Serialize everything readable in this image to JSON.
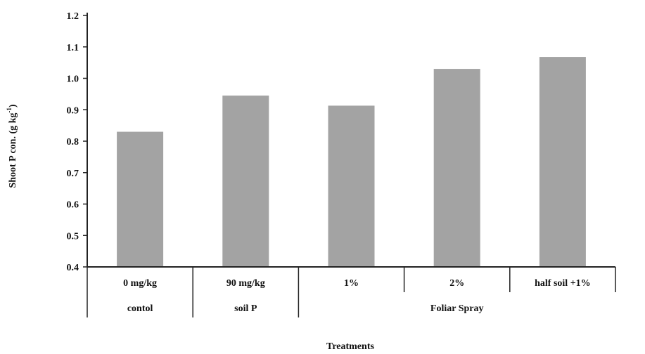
{
  "chart_data": {
    "type": "bar",
    "categories": [
      "0 mg/kg",
      "90 mg/kg",
      "1%",
      "2%",
      "half soil +1%"
    ],
    "groups": [
      {
        "label": "contol",
        "span": [
          0,
          0
        ]
      },
      {
        "label": "soil P",
        "span": [
          1,
          1
        ]
      },
      {
        "label": "Foliar Spray",
        "span": [
          2,
          4
        ]
      }
    ],
    "values": [
      0.83,
      0.945,
      0.913,
      1.03,
      1.068
    ],
    "xlabel": "Treatments",
    "ylabel_main": "Shoot P con. (g kg",
    "ylabel_sup": "-1",
    "ylabel_end": ")",
    "ylim": [
      0.4,
      1.2
    ],
    "yticks": [
      "0.4",
      "0.5",
      "0.6",
      "0.7",
      "0.8",
      "0.9",
      "1.0",
      "1.1",
      "1.2"
    ],
    "grid": false,
    "bar_color": "#a3a3a3"
  }
}
